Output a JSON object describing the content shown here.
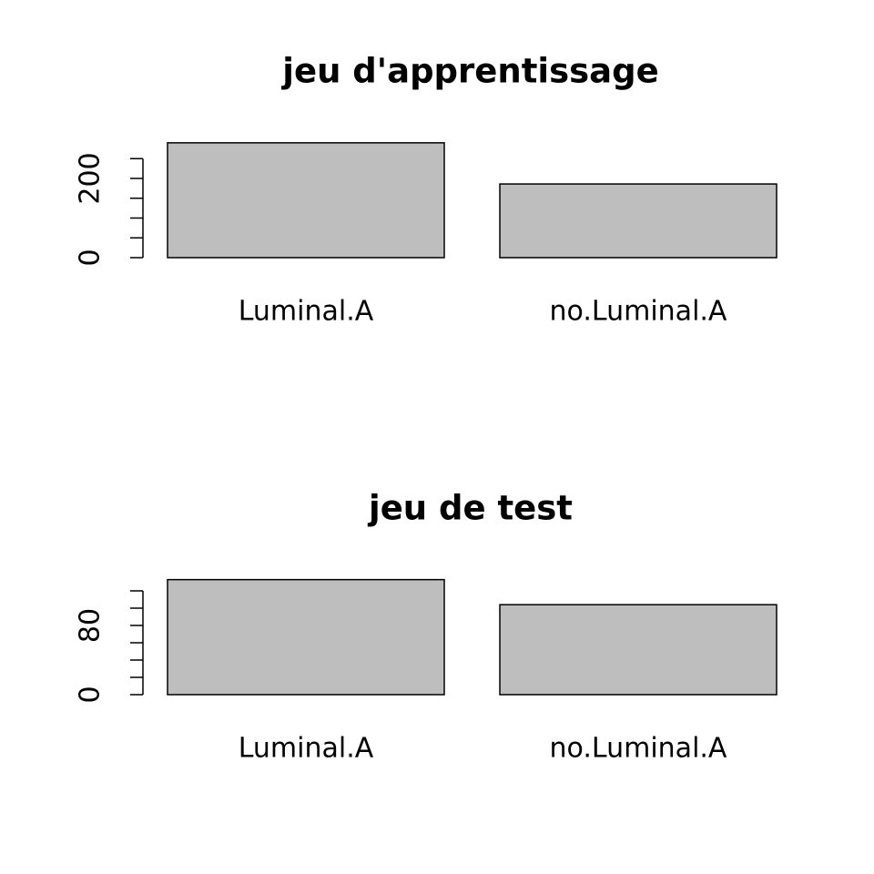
{
  "chart_data": [
    {
      "type": "bar",
      "title": "jeu d'apprentissage",
      "categories": [
        "Luminal.A",
        "no.Luminal.A"
      ],
      "values": [
        290,
        186
      ],
      "color": "#bebebe",
      "ylim": [
        0,
        300
      ],
      "yticks": [
        0,
        {
          "value": 50,
          "label": null
        },
        {
          "value": 100,
          "label": null
        },
        {
          "value": 150,
          "label": null
        },
        200,
        {
          "value": 250,
          "label": null
        }
      ]
    },
    {
      "type": "bar",
      "title": "jeu de test",
      "categories": [
        "Luminal.A",
        "no.Luminal.A"
      ],
      "values": [
        133,
        104
      ],
      "color": "#bebebe",
      "ylim": [
        0,
        140
      ],
      "yticks": [
        0,
        {
          "value": 20,
          "label": null
        },
        {
          "value": 40,
          "label": null
        },
        {
          "value": 60,
          "label": null
        },
        80,
        {
          "value": 100,
          "label": null
        },
        {
          "value": 120,
          "label": null
        }
      ]
    }
  ]
}
